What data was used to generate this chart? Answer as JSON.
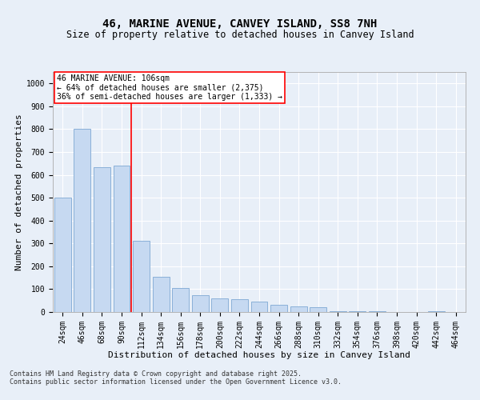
{
  "title": "46, MARINE AVENUE, CANVEY ISLAND, SS8 7NH",
  "subtitle": "Size of property relative to detached houses in Canvey Island",
  "xlabel": "Distribution of detached houses by size in Canvey Island",
  "ylabel": "Number of detached properties",
  "categories": [
    "24sqm",
    "46sqm",
    "68sqm",
    "90sqm",
    "112sqm",
    "134sqm",
    "156sqm",
    "178sqm",
    "200sqm",
    "222sqm",
    "244sqm",
    "266sqm",
    "288sqm",
    "310sqm",
    "332sqm",
    "354sqm",
    "376sqm",
    "398sqm",
    "420sqm",
    "442sqm",
    "464sqm"
  ],
  "bar_heights": [
    500,
    800,
    635,
    640,
    310,
    155,
    105,
    75,
    60,
    55,
    45,
    30,
    25,
    20,
    5,
    5,
    5,
    0,
    0,
    5,
    0
  ],
  "bar_color": "#c6d9f1",
  "bar_edge_color": "#8ab0d8",
  "vline_pos": 3.5,
  "vline_color": "red",
  "ylim": [
    0,
    1050
  ],
  "yticks": [
    0,
    100,
    200,
    300,
    400,
    500,
    600,
    700,
    800,
    900,
    1000
  ],
  "annotation_text": "46 MARINE AVENUE: 106sqm\n← 64% of detached houses are smaller (2,375)\n36% of semi-detached houses are larger (1,333) →",
  "annotation_box_color": "white",
  "annotation_box_edge": "red",
  "footer_text": "Contains HM Land Registry data © Crown copyright and database right 2025.\nContains public sector information licensed under the Open Government Licence v3.0.",
  "background_color": "#e8eff8",
  "plot_background": "#e8eff8",
  "grid_color": "white",
  "title_fontsize": 10,
  "subtitle_fontsize": 8.5,
  "tick_fontsize": 7,
  "label_fontsize": 8,
  "annotation_fontsize": 7,
  "footer_fontsize": 6
}
